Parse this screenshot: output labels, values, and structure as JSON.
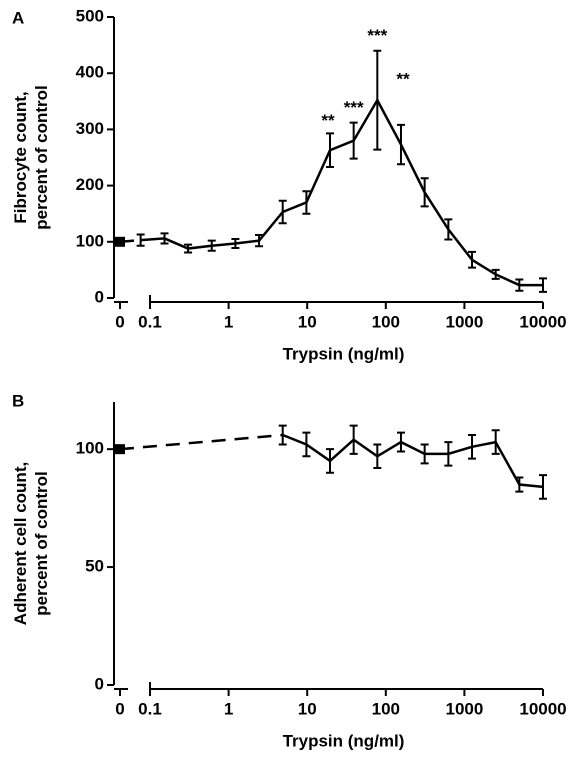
{
  "chart_data": [
    {
      "type": "line",
      "panel_label": "A",
      "ylabel": [
        "Fibrocyte count,",
        "percent of control"
      ],
      "xlabel": "Trypsin (ng/ml)",
      "log_x": true,
      "color": "#000000",
      "control_x": 0,
      "control_value": 100,
      "x": [
        0.076,
        0.153,
        0.305,
        0.61,
        1.22,
        2.44,
        4.88,
        9.77,
        19.5,
        39,
        78,
        156,
        312,
        625,
        1250,
        2500,
        5000,
        10000
      ],
      "values": [
        103,
        106,
        88,
        93,
        97,
        102,
        153,
        170,
        263,
        280,
        352,
        273,
        188,
        122,
        68,
        42,
        23,
        23
      ],
      "errors": [
        10,
        9,
        7,
        9,
        8,
        10,
        20,
        20,
        30,
        32,
        88,
        35,
        25,
        18,
        14,
        8,
        10,
        12
      ],
      "xlim": [
        0.1,
        10000
      ],
      "xticks": [
        0.1,
        1,
        10,
        100,
        1000,
        10000
      ],
      "ylim": [
        0,
        500
      ],
      "yticks": [
        0,
        100,
        200,
        300,
        400,
        500
      ],
      "annotations": [
        {
          "text": "**",
          "x": 19.5
        },
        {
          "text": "***",
          "x": 39
        },
        {
          "text": "***",
          "x": 78
        },
        {
          "text": "**",
          "x": 156
        }
      ]
    },
    {
      "type": "line",
      "panel_label": "B",
      "ylabel": [
        "Adherent cell count,",
        "percent of control"
      ],
      "xlabel": "Trypsin (ng/ml)",
      "log_x": true,
      "color": "#000000",
      "control_x": 0,
      "control_value": 100,
      "x": [
        4.88,
        9.77,
        19.5,
        39,
        78,
        156,
        312,
        625,
        1250,
        2500,
        5000,
        10000
      ],
      "values": [
        106,
        102,
        95,
        104,
        97,
        103,
        98,
        98,
        101,
        103,
        85,
        84
      ],
      "errors": [
        4,
        5,
        5,
        6,
        5,
        4,
        4,
        5,
        5,
        5,
        3,
        5
      ],
      "xlim": [
        0.1,
        10000
      ],
      "xticks": [
        0.1,
        1,
        10,
        100,
        1000,
        10000
      ],
      "ylim": [
        0,
        120
      ],
      "yticks": [
        0,
        50,
        100
      ]
    }
  ]
}
